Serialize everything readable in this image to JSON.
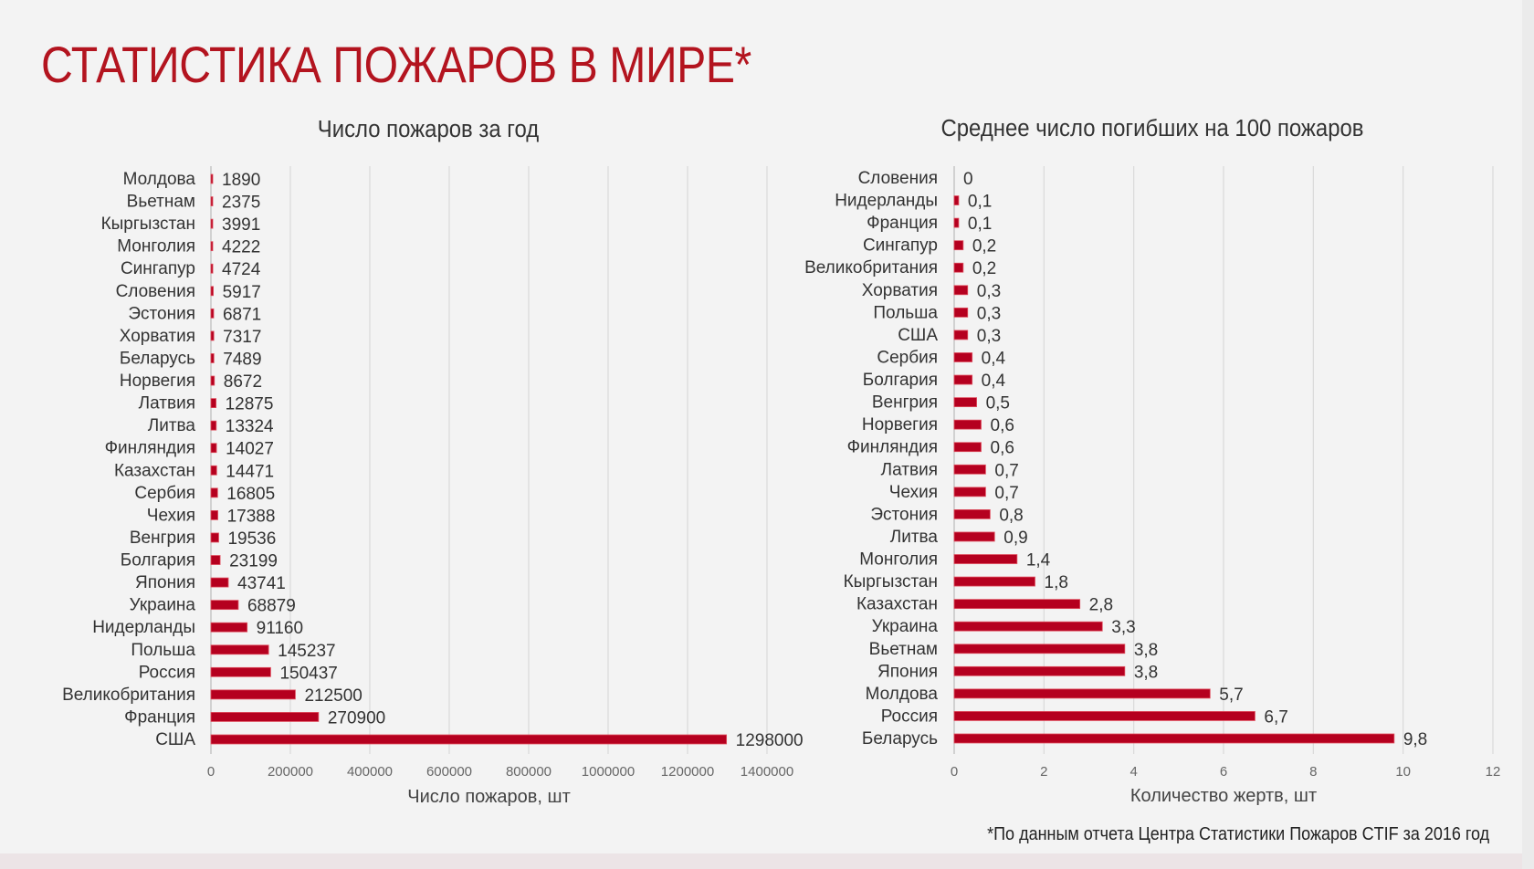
{
  "title": "СТАТИСТИКА ПОЖАРОВ В МИРЕ*",
  "footnote": "*По данным отчета Центра Статистики Пожаров CTIF за 2016 год",
  "bar_color": "#b5001f",
  "chart_data": [
    {
      "type": "bar",
      "orientation": "horizontal",
      "title": "Число пожаров за год",
      "xlabel": "Число пожаров, шт",
      "xlim": [
        0,
        1400000
      ],
      "xticks": [
        "0",
        "200000",
        "400000",
        "600000",
        "800000",
        "1000000",
        "1200000",
        "1400000"
      ],
      "grid": true,
      "categories": [
        "Молдова",
        "Вьетнам",
        "Кыргызстан",
        "Монголия",
        "Сингапур",
        "Словения",
        "Эстония",
        "Хорватия",
        "Беларусь",
        "Норвегия",
        "Латвия",
        "Литва",
        "Финляндия",
        "Казахстан",
        "Сербия",
        "Чехия",
        "Венгрия",
        "Болгария",
        "Япония",
        "Украина",
        "Нидерланды",
        "Польша",
        "Россия",
        "Великобритания",
        "Франция",
        "США"
      ],
      "values": [
        1890,
        2375,
        3991,
        4222,
        4724,
        5917,
        6871,
        7317,
        7489,
        8672,
        12875,
        13324,
        14027,
        14471,
        16805,
        17388,
        19536,
        23199,
        43741,
        68879,
        91160,
        145237,
        150437,
        212500,
        270900,
        1298000
      ],
      "labels": [
        "1890",
        "2375",
        "3991",
        "4222",
        "4724",
        "5917",
        "6871",
        "7317",
        "7489",
        "8672",
        "12875",
        "13324",
        "14027",
        "14471",
        "16805",
        "17388",
        "19536",
        "23199",
        "43741",
        "68879",
        "91160",
        "145237",
        "150437",
        "212500",
        "270900",
        "1298000"
      ]
    },
    {
      "type": "bar",
      "orientation": "horizontal",
      "title": "Среднее число погибших на 100 пожаров",
      "xlabel": "Количество жертв, шт",
      "xlim": [
        0,
        12
      ],
      "xticks": [
        "0",
        "2",
        "4",
        "6",
        "8",
        "10",
        "12"
      ],
      "grid": true,
      "categories": [
        "Словения",
        "Нидерланды",
        "Франция",
        "Сингапур",
        "Великобритания",
        "Хорватия",
        "Польша",
        "США",
        "Сербия",
        "Болгария",
        "Венгрия",
        "Норвегия",
        "Финляндия",
        "Латвия",
        "Чехия",
        "Эстония",
        "Литва",
        "Монголия",
        "Кыргызстан",
        "Казахстан",
        "Украина",
        "Вьетнам",
        "Япония",
        "Молдова",
        "Россия",
        "Беларусь"
      ],
      "values": [
        0,
        0.1,
        0.1,
        0.2,
        0.2,
        0.3,
        0.3,
        0.3,
        0.4,
        0.4,
        0.5,
        0.6,
        0.6,
        0.7,
        0.7,
        0.8,
        0.9,
        1.4,
        1.8,
        2.8,
        3.3,
        3.8,
        3.8,
        5.7,
        6.7,
        9.8
      ],
      "labels": [
        "0",
        "0,1",
        "0,1",
        "0,2",
        "0,2",
        "0,3",
        "0,3",
        "0,3",
        "0,4",
        "0,4",
        "0,5",
        "0,6",
        "0,6",
        "0,7",
        "0,7",
        "0,8",
        "0,9",
        "1,4",
        "1,8",
        "2,8",
        "3,3",
        "3,8",
        "3,8",
        "5,7",
        "6,7",
        "9,8"
      ]
    }
  ]
}
